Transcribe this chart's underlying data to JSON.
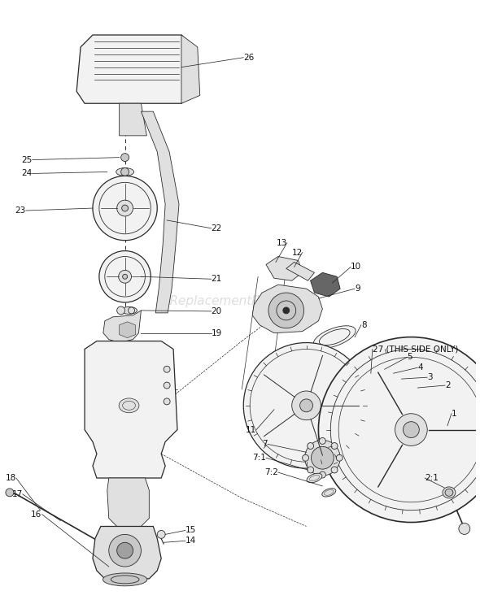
{
  "bg_color": "#ffffff",
  "line_color": "#2a2a2a",
  "fill_light": "#f2f2f2",
  "fill_mid": "#e0e0e0",
  "fill_dark": "#c8c8c8",
  "watermark": "eReplacementParts.com",
  "watermark_color": "#c8c8c8",
  "label_fontsize": 7.5,
  "label_color": "#111111"
}
